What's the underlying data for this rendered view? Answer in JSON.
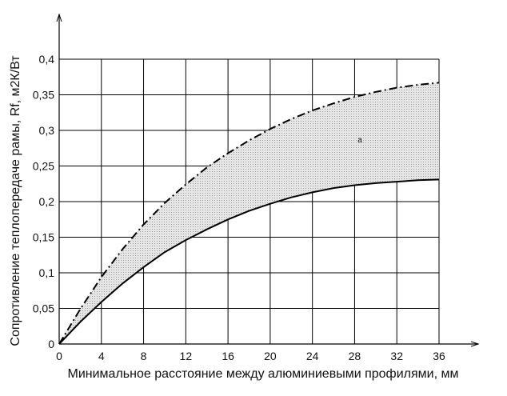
{
  "chart_data": {
    "type": "line",
    "xlabel": "Минимальное расстояние между алюминиевыми профилями, мм",
    "ylabel": "Сопротивление теплопередаче рамы, Rf, м2К/Вт",
    "xlim": [
      0,
      36
    ],
    "ylim": [
      0,
      0.4
    ],
    "x_ticks": [
      "0",
      "4",
      "8",
      "12",
      "16",
      "20",
      "24",
      "28",
      "32",
      "36"
    ],
    "y_ticks": [
      "0",
      "0,05",
      "0,1",
      "0,15",
      "0,2",
      "0,25",
      "0,3",
      "0,35",
      "0,4"
    ],
    "grid": true,
    "x": [
      0,
      2,
      4,
      6,
      8,
      10,
      12,
      14,
      16,
      18,
      20,
      22,
      24,
      26,
      28,
      30,
      32,
      34,
      36
    ],
    "series": [
      {
        "style": "dash-dot",
        "values": [
          0,
          0.049,
          0.094,
          0.133,
          0.168,
          0.198,
          0.224,
          0.248,
          0.268,
          0.286,
          0.302,
          0.316,
          0.328,
          0.338,
          0.347,
          0.354,
          0.36,
          0.364,
          0.367
        ]
      },
      {
        "style": "solid",
        "values": [
          0,
          0.031,
          0.059,
          0.085,
          0.108,
          0.129,
          0.146,
          0.161,
          0.175,
          0.187,
          0.197,
          0.206,
          0.213,
          0.219,
          0.223,
          0.226,
          0.228,
          0.23,
          0.231
        ]
      }
    ],
    "shaded_region": "between-series",
    "annotations": [
      {
        "text": "a",
        "x": 28.5,
        "y": 0.283
      }
    ]
  },
  "colors": {
    "line": "#000000",
    "grid": "#000000",
    "fill": "#d6d6d6",
    "fill_dot": "#9a9a9a"
  }
}
